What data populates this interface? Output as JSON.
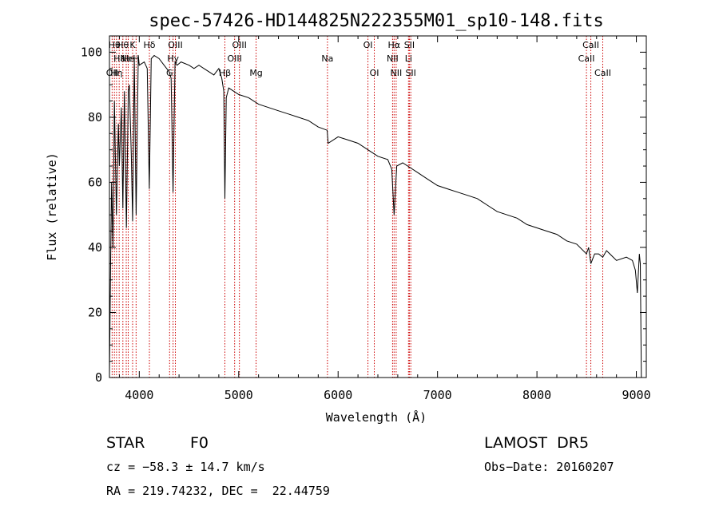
{
  "chart_data": {
    "type": "line",
    "title": "spec-57426-HD144825N222355M01_sp10-148.fits",
    "xlabel": "Wavelength (Å)",
    "ylabel": "Flux (relative)",
    "xlim": [
      3700,
      9100
    ],
    "ylim": [
      0,
      105
    ],
    "x_ticks": [
      4000,
      5000,
      6000,
      7000,
      8000,
      9000
    ],
    "y_ticks": [
      0,
      20,
      40,
      60,
      80,
      100
    ],
    "grid": false,
    "series": [
      {
        "color": "#000000",
        "x": [
          3700,
          3712,
          3722,
          3735,
          3750,
          3770,
          3790,
          3800,
          3820,
          3835,
          3850,
          3870,
          3890,
          3900,
          3920,
          3933,
          3950,
          3968,
          3990,
          4000,
          4050,
          4080,
          4101,
          4120,
          4150,
          4200,
          4250,
          4300,
          4320,
          4340,
          4360,
          4380,
          4420,
          4500,
          4550,
          4600,
          4650,
          4700,
          4750,
          4800,
          4830,
          4850,
          4861,
          4875,
          4900,
          4950,
          5000,
          5100,
          5200,
          5300,
          5400,
          5500,
          5600,
          5700,
          5800,
          5890,
          5900,
          6000,
          6100,
          6200,
          6300,
          6400,
          6500,
          6540,
          6563,
          6590,
          6650,
          6700,
          6800,
          6900,
          7000,
          7100,
          7200,
          7300,
          7400,
          7500,
          7600,
          7700,
          7800,
          7900,
          8000,
          8100,
          8200,
          8300,
          8400,
          8498,
          8520,
          8542,
          8580,
          8620,
          8662,
          8700,
          8800,
          8900,
          8960,
          8990,
          9010,
          9030,
          9040,
          9050
        ],
        "y": [
          1,
          36,
          60,
          40,
          85,
          50,
          78,
          65,
          83,
          52,
          88,
          46,
          88,
          90,
          68,
          48,
          98,
          50,
          99,
          96,
          97,
          95,
          58,
          98,
          99,
          98,
          96,
          94,
          92,
          57,
          97,
          96,
          97,
          96,
          95,
          96,
          95,
          94,
          93,
          95,
          92,
          88,
          55,
          86,
          89,
          88,
          87,
          86,
          84,
          83,
          82,
          81,
          80,
          79,
          77,
          76,
          72,
          74,
          73,
          72,
          70,
          68,
          67,
          64,
          50,
          65,
          66,
          65,
          63,
          61,
          59,
          58,
          57,
          56,
          55,
          53,
          51,
          50,
          49,
          47,
          46,
          45,
          44,
          42,
          41,
          38,
          40,
          35,
          38,
          38,
          37,
          39,
          36,
          37,
          36,
          33,
          26,
          38,
          35,
          0
        ]
      }
    ],
    "lines": [
      {
        "x": 3727,
        "label": "OII",
        "row": 2
      },
      {
        "x": 3750,
        "label": "Hθ",
        "row": 0
      },
      {
        "x": 3771,
        "label": "Hη",
        "row": 2
      },
      {
        "x": 3798,
        "label": "Hε",
        "row": 1
      },
      {
        "x": 3835,
        "label": "Hθ",
        "row": 0
      },
      {
        "x": 3869,
        "label": "Ne",
        "row": 1
      },
      {
        "x": 3889,
        "label": "He",
        "row": 1
      },
      {
        "x": 3933,
        "label": "K",
        "row": 0
      },
      {
        "x": 3968,
        "label": "H",
        "row": 1
      },
      {
        "x": 4102,
        "label": "Hδ",
        "row": 0
      },
      {
        "x": 4305,
        "label": "G",
        "row": 2
      },
      {
        "x": 4340,
        "label": "Hγ",
        "row": 1
      },
      {
        "x": 4363,
        "label": "OIII",
        "row": 0
      },
      {
        "x": 4861,
        "label": "Hβ",
        "row": 2
      },
      {
        "x": 4959,
        "label": "OIII",
        "row": 1
      },
      {
        "x": 5007,
        "label": "OIII",
        "row": 0
      },
      {
        "x": 5175,
        "label": "Mg",
        "row": 2
      },
      {
        "x": 5893,
        "label": "Na",
        "row": 1
      },
      {
        "x": 6300,
        "label": "OI",
        "row": 0
      },
      {
        "x": 6364,
        "label": "OI",
        "row": 2
      },
      {
        "x": 6548,
        "label": "NII",
        "row": 1
      },
      {
        "x": 6563,
        "label": "Hα",
        "row": 0
      },
      {
        "x": 6584,
        "label": "NII",
        "row": 2
      },
      {
        "x": 6708,
        "label": "Li",
        "row": 1
      },
      {
        "x": 6717,
        "label": "SII",
        "row": 0
      },
      {
        "x": 6731,
        "label": "SII",
        "row": 2
      },
      {
        "x": 8498,
        "label": "CaII",
        "row": 1
      },
      {
        "x": 8542,
        "label": "CaII",
        "row": 0
      },
      {
        "x": 8662,
        "label": "CaII",
        "row": 2
      }
    ],
    "line_color": "#cc0000"
  },
  "footer": {
    "class_label": "STAR",
    "subclass": "F0",
    "survey": "LAMOST  DR5",
    "cz": "cz = −58.3 ± 14.7 km/s",
    "obs_date": "Obs−Date: 20160207",
    "radec": "RA = 219.74232, DEC =  22.44759"
  }
}
